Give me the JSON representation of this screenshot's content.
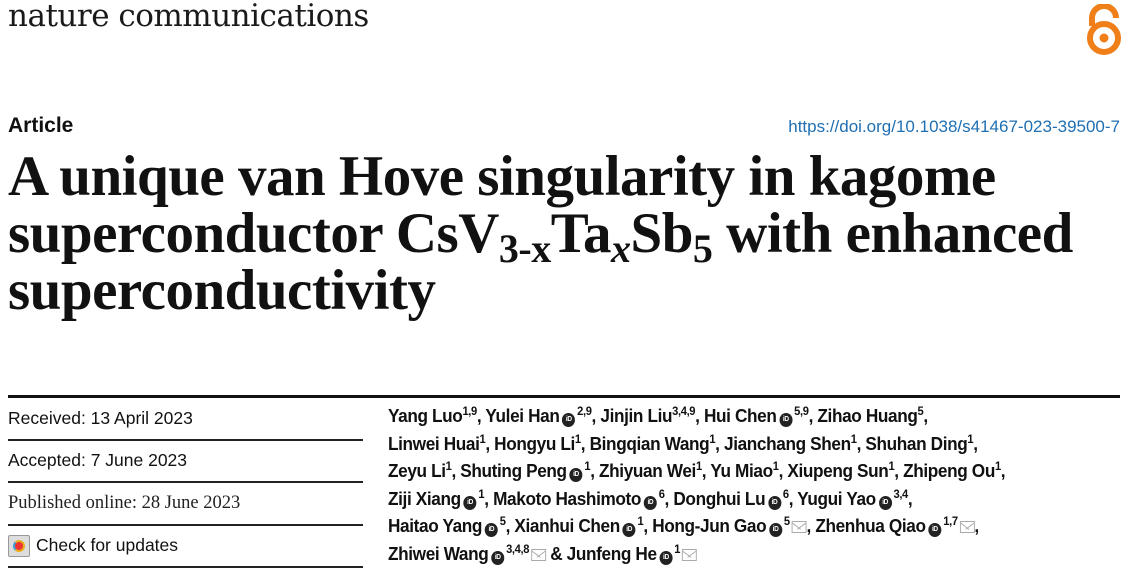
{
  "header": {
    "journal": "nature communications",
    "open_access_icon": "open-access-lock-icon",
    "accent_color": "#f07f1a"
  },
  "article_type": "Article",
  "doi": "https://doi.org/10.1038/s41467-023-39500-7",
  "title": {
    "part1": "A unique van Hove singularity in kagome superconductor CsV",
    "sub1": "3-x",
    "part2": "Ta",
    "sub2": "x",
    "part3": "Sb",
    "sub3": "5",
    "part4": " with enhanced superconductivity"
  },
  "dates": {
    "received": "Received: 13 April 2023",
    "accepted": "Accepted: 7 June 2023",
    "published": "Published online: 28 June 2023",
    "check_updates": "Check for updates"
  },
  "authors": [
    {
      "name": "Yang Luo",
      "aff": "1,9",
      "orcid": false,
      "email": false
    },
    {
      "name": "Yulei Han",
      "aff": "2,9",
      "orcid": true,
      "email": false
    },
    {
      "name": "Jinjin Liu",
      "aff": "3,4,9",
      "orcid": false,
      "email": false
    },
    {
      "name": "Hui Chen",
      "aff": "5,9",
      "orcid": true,
      "email": false
    },
    {
      "name": "Zihao Huang",
      "aff": "5",
      "orcid": false,
      "email": false,
      "br": true
    },
    {
      "name": "Linwei Huai",
      "aff": "1",
      "orcid": false,
      "email": false
    },
    {
      "name": "Hongyu Li",
      "aff": "1",
      "orcid": false,
      "email": false
    },
    {
      "name": "Bingqian Wang",
      "aff": "1",
      "orcid": false,
      "email": false
    },
    {
      "name": "Jianchang Shen",
      "aff": "1",
      "orcid": false,
      "email": false
    },
    {
      "name": "Shuhan Ding",
      "aff": "1",
      "orcid": false,
      "email": false,
      "br": true
    },
    {
      "name": "Zeyu Li",
      "aff": "1",
      "orcid": false,
      "email": false
    },
    {
      "name": "Shuting Peng",
      "aff": "1",
      "orcid": true,
      "email": false
    },
    {
      "name": "Zhiyuan Wei",
      "aff": "1",
      "orcid": false,
      "email": false
    },
    {
      "name": "Yu Miao",
      "aff": "1",
      "orcid": false,
      "email": false
    },
    {
      "name": "Xiupeng Sun",
      "aff": "1",
      "orcid": false,
      "email": false
    },
    {
      "name": "Zhipeng Ou",
      "aff": "1",
      "orcid": false,
      "email": false,
      "br": true
    },
    {
      "name": "Ziji Xiang",
      "aff": "1",
      "orcid": true,
      "email": false
    },
    {
      "name": "Makoto Hashimoto",
      "aff": "6",
      "orcid": true,
      "email": false
    },
    {
      "name": "Donghui Lu",
      "aff": "6",
      "orcid": true,
      "email": false
    },
    {
      "name": "Yugui Yao",
      "aff": "3,4",
      "orcid": true,
      "email": false,
      "br": true
    },
    {
      "name": "Haitao Yang",
      "aff": "5",
      "orcid": true,
      "email": false
    },
    {
      "name": "Xianhui Chen",
      "aff": "1",
      "orcid": true,
      "email": false
    },
    {
      "name": "Hong-Jun Gao",
      "aff": "5",
      "orcid": true,
      "email": true
    },
    {
      "name": "Zhenhua Qiao",
      "aff": "1,7",
      "orcid": true,
      "email": true,
      "br": true
    },
    {
      "name": "Zhiwei Wang",
      "aff": "3,4,8",
      "orcid": true,
      "email": true
    },
    {
      "name": "Junfeng He",
      "aff": "1",
      "orcid": true,
      "email": true
    }
  ],
  "author_separator": ", ",
  "author_last_separator": " & "
}
